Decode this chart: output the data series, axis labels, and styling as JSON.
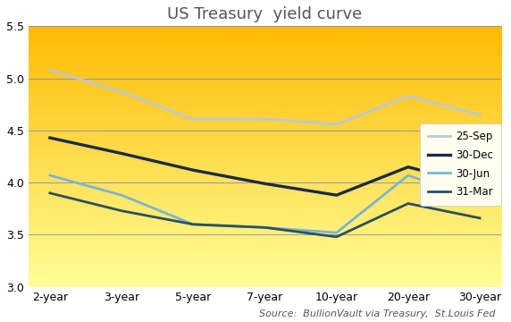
{
  "title": "US Treasury  yield curve",
  "source_text": "Source:  BullionVault via Treasury,  St.Louis Fed",
  "x_labels": [
    "2-year",
    "3-year",
    "5-year",
    "7-year",
    "10-year",
    "20-year",
    "30-year"
  ],
  "series": [
    {
      "label": "25-Sep",
      "color": "#b8c8dc",
      "linewidth": 2.0,
      "values": [
        5.08,
        4.87,
        4.61,
        4.61,
        4.56,
        4.83,
        4.65
      ]
    },
    {
      "label": "30-Dec",
      "color": "#1a2a4a",
      "linewidth": 2.4,
      "values": [
        4.43,
        4.28,
        4.12,
        3.99,
        3.88,
        4.15,
        3.97
      ]
    },
    {
      "label": "30-Jun",
      "color": "#7ab4d8",
      "linewidth": 2.0,
      "values": [
        4.07,
        3.88,
        3.6,
        3.57,
        3.52,
        4.07,
        3.83
      ]
    },
    {
      "label": "31-Mar",
      "color": "#2a5060",
      "linewidth": 2.0,
      "values": [
        3.9,
        3.73,
        3.6,
        3.57,
        3.48,
        3.8,
        3.66
      ]
    }
  ],
  "ylim": [
    3.0,
    5.5
  ],
  "yticks": [
    3.0,
    3.5,
    4.0,
    4.5,
    5.0,
    5.5
  ],
  "legend_facecolor": "#fffff0",
  "legend_edgecolor": "#cccccc",
  "grid_color": "#8888bb",
  "title_fontsize": 13,
  "source_fontsize": 8,
  "tick_fontsize": 9
}
